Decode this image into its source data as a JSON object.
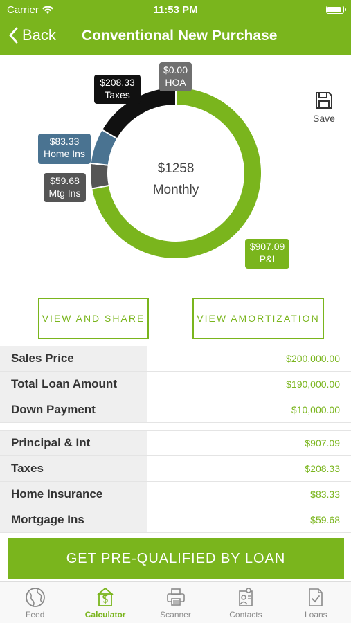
{
  "status": {
    "carrier": "Carrier",
    "time": "11:53 PM"
  },
  "nav": {
    "back_label": "Back",
    "title": "Conventional New Purchase"
  },
  "chart_data": {
    "type": "pie",
    "center_amount": "$1258",
    "center_label": "Monthly",
    "slices": [
      {
        "label": "P&I",
        "value": 907.09,
        "display": "$907.09",
        "color": "#7ab51d"
      },
      {
        "label": "Mtg Ins",
        "value": 59.68,
        "display": "$59.68",
        "color": "#555555"
      },
      {
        "label": "Home Ins",
        "value": 83.33,
        "display": "$83.33",
        "color": "#4a7391"
      },
      {
        "label": "Taxes",
        "value": 208.33,
        "display": "$208.33",
        "color": "#111111"
      },
      {
        "label": "HOA",
        "value": 0.0,
        "display": "$0.00",
        "color": "#6f6f6f"
      }
    ]
  },
  "save_label": "Save",
  "buttons": {
    "share": "VIEW AND SHARE",
    "amortization": "VIEW AMORTIZATION",
    "prequal": "GET PRE-QUALIFIED BY LOAN"
  },
  "loan_rows": [
    {
      "label": "Sales Price",
      "value": "$200,000.00"
    },
    {
      "label": "Total Loan Amount",
      "value": "$190,000.00"
    },
    {
      "label": "Down Payment",
      "value": "$10,000.00"
    }
  ],
  "payment_rows": [
    {
      "label": "Principal & Int",
      "value": "$907.09"
    },
    {
      "label": "Taxes",
      "value": "$208.33"
    },
    {
      "label": "Home Insurance",
      "value": "$83.33"
    },
    {
      "label": "Mortgage Ins",
      "value": "$59.68"
    }
  ],
  "tabs": [
    {
      "label": "Feed",
      "icon": "globe-icon"
    },
    {
      "label": "Calculator",
      "icon": "calculator-dollar-icon"
    },
    {
      "label": "Scanner",
      "icon": "printer-icon"
    },
    {
      "label": "Contacts",
      "icon": "contacts-icon"
    },
    {
      "label": "Loans",
      "icon": "document-check-icon"
    }
  ],
  "colors": {
    "brand": "#7ab51d",
    "label_bg": "#efefef"
  }
}
